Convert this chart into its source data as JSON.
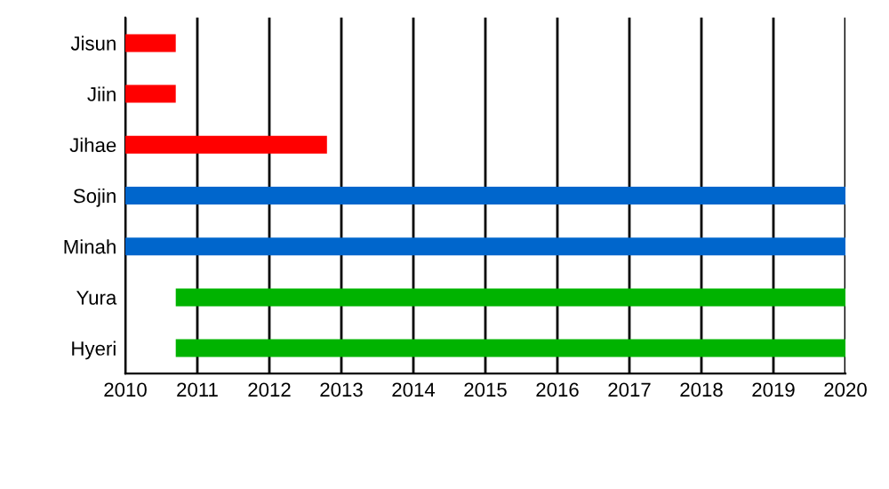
{
  "chart_data": {
    "type": "bar",
    "orientation": "horizontal",
    "categories": [
      "Jisun",
      "Jiin",
      "Jihae",
      "Sojin",
      "Minah",
      "Yura",
      "Hyeri"
    ],
    "base": [
      2010,
      2010,
      2010,
      2010,
      2010,
      2010.7,
      2010.7
    ],
    "values": [
      0.7,
      0.7,
      2.8,
      10,
      10,
      9.3,
      9.3
    ],
    "colors": [
      "#ff0000",
      "#ff0000",
      "#ff0000",
      "#0066cc",
      "#0066cc",
      "#00b300",
      "#00b300"
    ],
    "xlim": [
      2010,
      2020
    ],
    "xticks": [
      2010,
      2011,
      2012,
      2013,
      2014,
      2015,
      2016,
      2017,
      2018,
      2019,
      2020
    ],
    "grid": "x",
    "legend": false
  }
}
